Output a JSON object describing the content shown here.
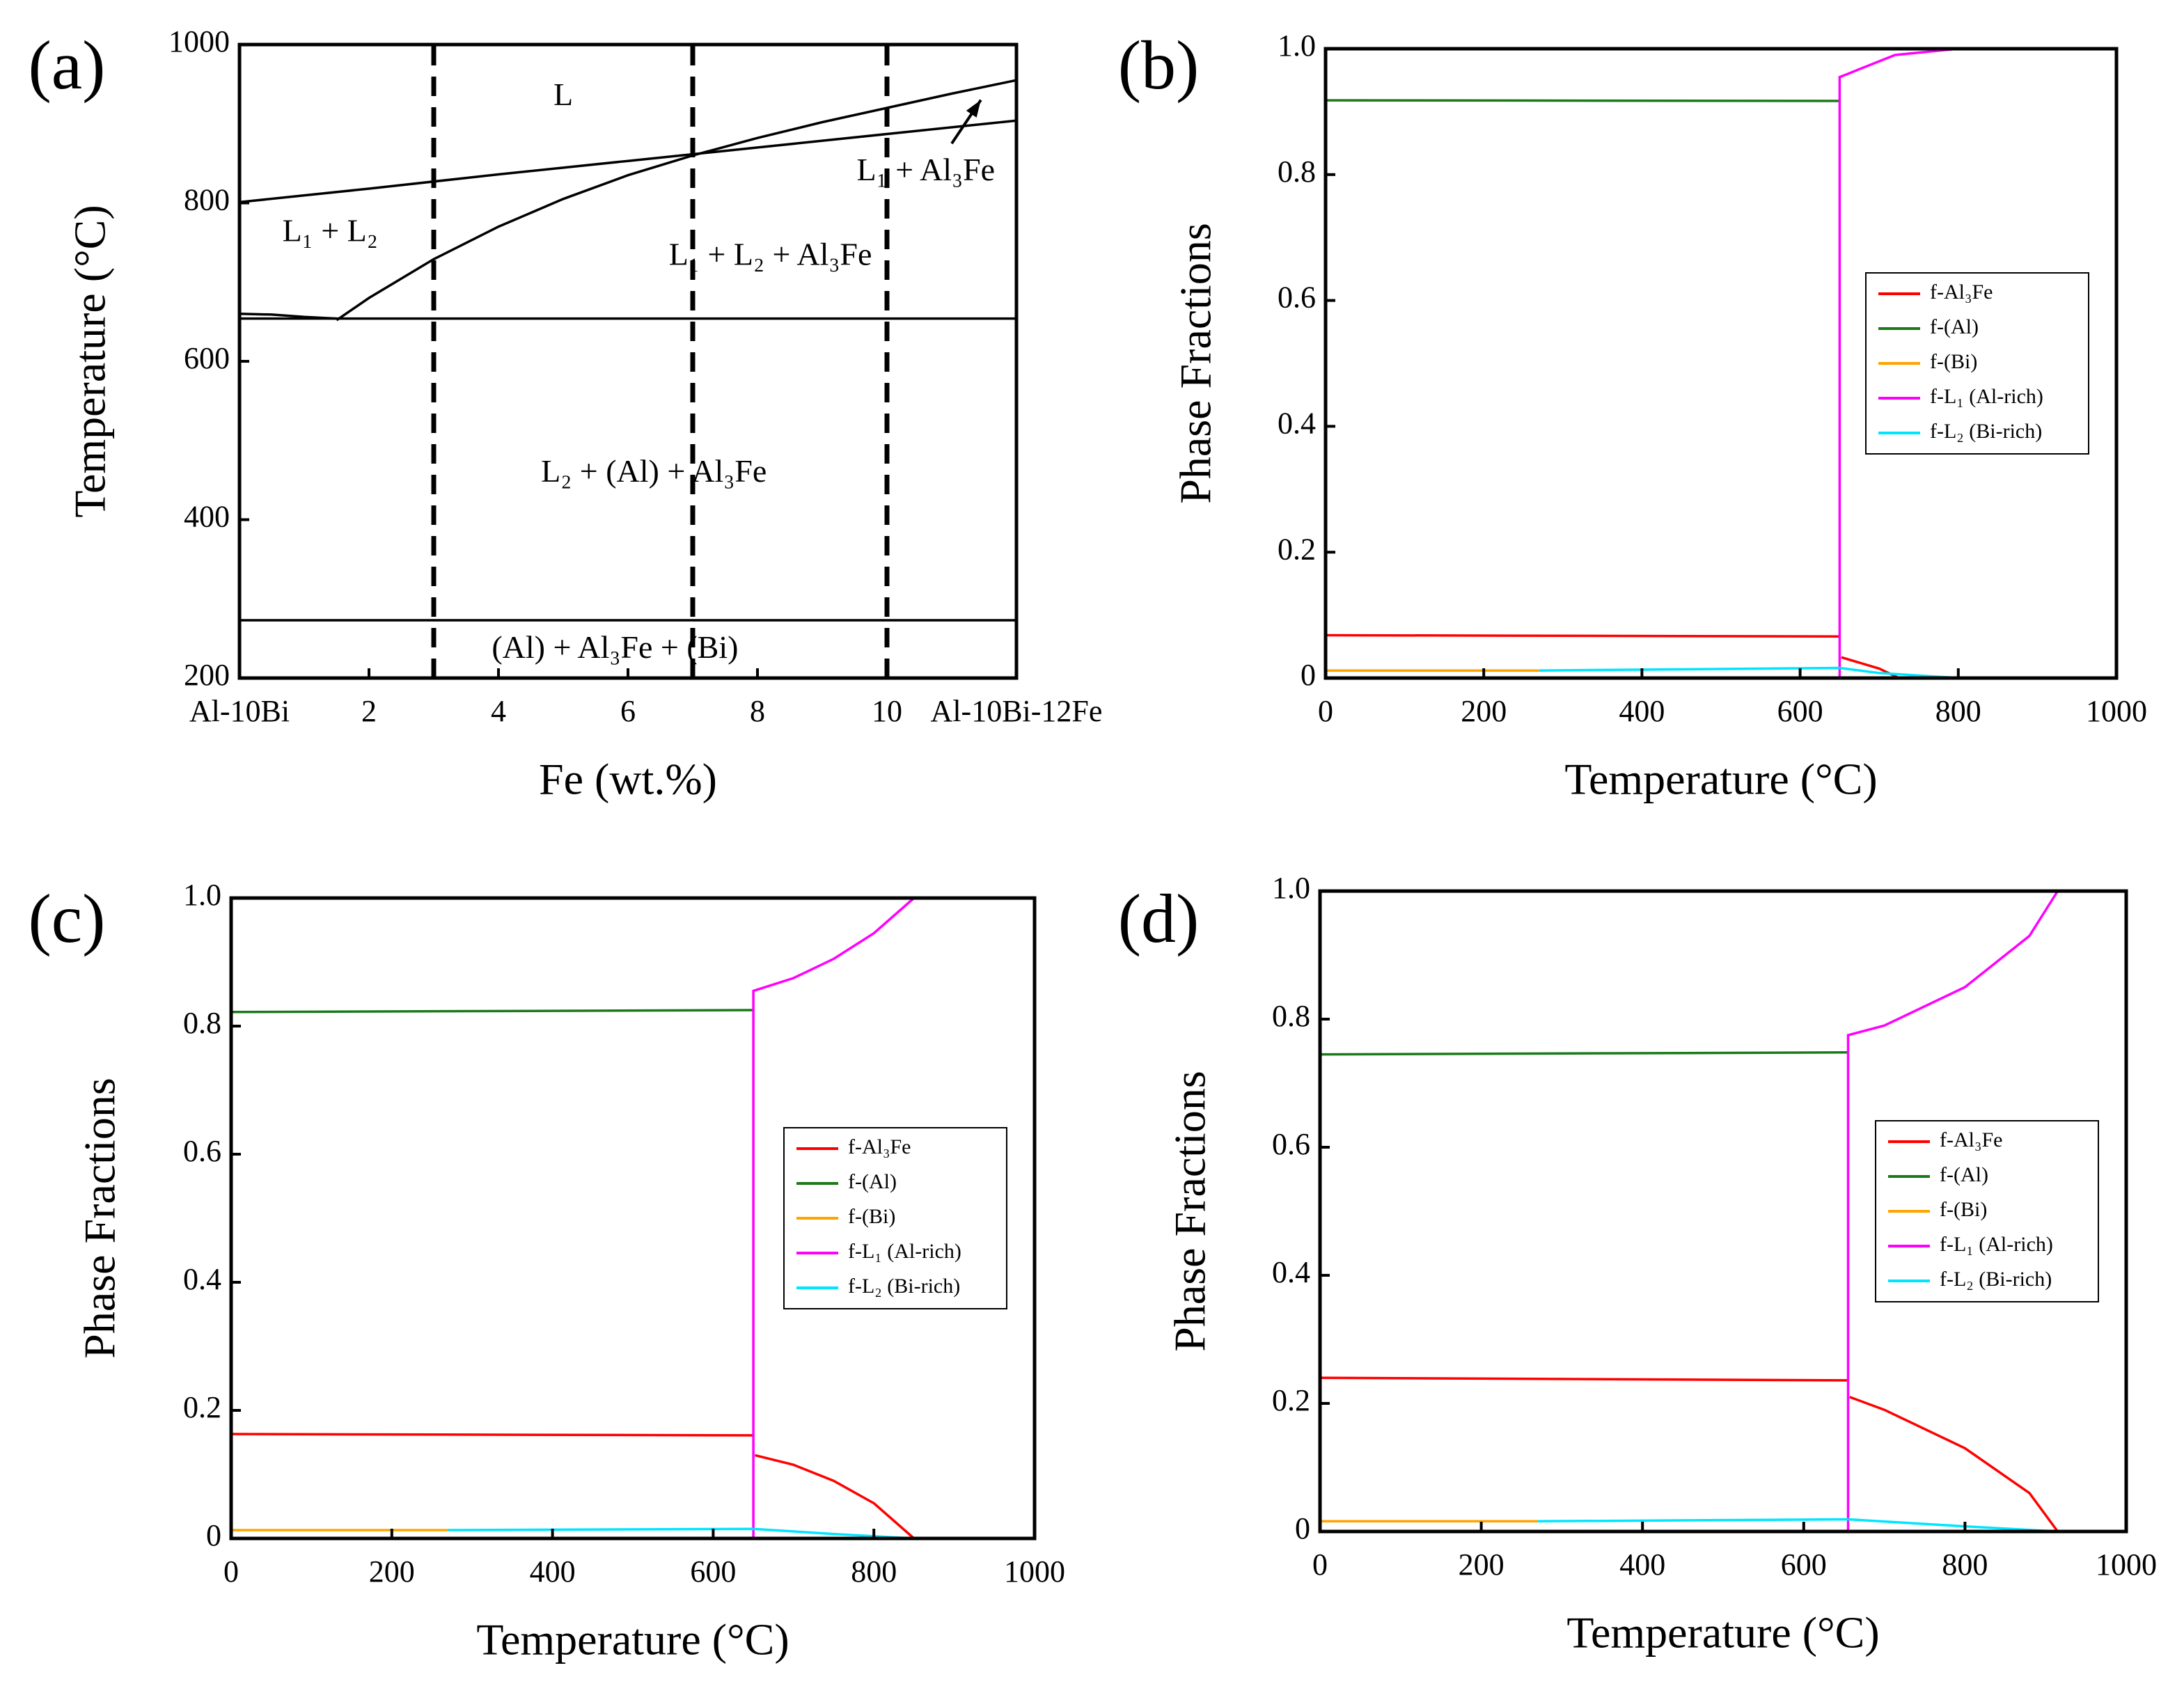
{
  "chart_data": [
    {
      "type": "line",
      "label": "(a)",
      "x_label": "Fe (wt.%)",
      "y_label": "Temperature (°C)",
      "xlim": [
        0,
        12
      ],
      "xticks": [
        {
          "value": 0,
          "label": "Al-10Bi"
        },
        2,
        4,
        6,
        8,
        10,
        {
          "value": 12,
          "label": "Al-10Bi-12Fe"
        }
      ],
      "ylim": [
        200,
        1000
      ],
      "yticks": [
        200,
        400,
        600,
        800,
        1000
      ],
      "annotations": [
        "L",
        "L₁ + L₂",
        "L₁ + L₂ + Al₃Fe",
        "L₁ + Al₃Fe",
        "L₂ + (Al) + Al₃Fe",
        "(Al) + Al₃Fe + (Bi)"
      ],
      "series": [
        {
          "color": "#000000",
          "x": [
            0,
            2,
            4,
            6,
            8,
            10,
            12
          ],
          "values": [
            801,
            818,
            836,
            853,
            870,
            887,
            904
          ]
        },
        {
          "color": "#000000",
          "x": [
            1.5,
            2,
            3,
            4,
            5,
            6,
            7,
            8,
            9,
            10,
            11,
            12
          ],
          "values": [
            652,
            680,
            729,
            770,
            805,
            835,
            860,
            882,
            902,
            920,
            938,
            955
          ]
        },
        {
          "color": "#000000",
          "x": [
            0,
            0.5,
            1,
            1.5
          ],
          "values": [
            660,
            659,
            656,
            654
          ]
        },
        {
          "color": "#000000",
          "x": [
            0,
            12
          ],
          "values": [
            654,
            654
          ]
        },
        {
          "color": "#000000",
          "x": [
            0,
            12
          ],
          "values": [
            273,
            273
          ]
        },
        {
          "color": "#000000",
          "dashed": true,
          "x": [
            3,
            3
          ],
          "values": [
            200,
            1000
          ]
        },
        {
          "color": "#000000",
          "dashed": true,
          "x": [
            7,
            7
          ],
          "values": [
            200,
            1000
          ]
        },
        {
          "color": "#000000",
          "dashed": true,
          "x": [
            10,
            10
          ],
          "values": [
            200,
            1000
          ]
        }
      ]
    },
    {
      "type": "line",
      "label": "(b)",
      "x_label": "Temperature (°C)",
      "y_label": "Phase Fractions",
      "xlim": [
        0,
        1000
      ],
      "xticks": [
        0,
        200,
        400,
        600,
        800,
        1000
      ],
      "ylim": [
        0,
        1
      ],
      "yticks": [
        0,
        0.2,
        0.4,
        0.6,
        0.8,
        {
          "value": 1,
          "label": "1.0"
        }
      ],
      "legend": "center right",
      "series": [
        {
          "name": "f-Al₃Fe",
          "color": "#ff0000",
          "x": [
            0,
            650,
            650,
            652,
            700,
            725
          ],
          "values": [
            0.068,
            0.066,
            null,
            0.033,
            0.015,
            0
          ]
        },
        {
          "name": "f-(Al)",
          "color": "#1a7a1a",
          "x": [
            0,
            650
          ],
          "values": [
            0.918,
            0.917
          ]
        },
        {
          "name": "f-(Bi)",
          "color": "#ffa500",
          "x": [
            0,
            270
          ],
          "values": [
            0.012,
            0.012
          ]
        },
        {
          "name": "f-L₁ (Al-rich)",
          "color": "#ff00ff",
          "x": [
            650,
            650,
            660,
            720,
            800
          ],
          "values": [
            0,
            0.955,
            0.96,
            0.99,
            1
          ]
        },
        {
          "name": "f-L₂ (Bi-rich)",
          "color": "#00e5ff",
          "x": [
            270,
            650,
            700,
            800
          ],
          "values": [
            0.012,
            0.016,
            0.008,
            0
          ]
        }
      ]
    },
    {
      "type": "line",
      "label": "(c)",
      "x_label": "Temperature (°C)",
      "y_label": "Phase Fractions",
      "xlim": [
        0,
        1000
      ],
      "xticks": [
        0,
        200,
        400,
        600,
        800,
        1000
      ],
      "ylim": [
        0,
        1
      ],
      "yticks": [
        0,
        0.2,
        0.4,
        0.6,
        0.8,
        {
          "value": 1,
          "label": "1.0"
        }
      ],
      "legend": "center right",
      "series": [
        {
          "name": "f-Al₃Fe",
          "color": "#ff0000",
          "x": [
            0,
            650,
            650,
            652,
            700,
            750,
            800,
            850
          ],
          "values": [
            0.163,
            0.161,
            null,
            0.13,
            0.115,
            0.09,
            0.055,
            0
          ]
        },
        {
          "name": "f-(Al)",
          "color": "#1a7a1a",
          "x": [
            0,
            650
          ],
          "values": [
            0.822,
            0.825
          ]
        },
        {
          "name": "f-(Bi)",
          "color": "#ffa500",
          "x": [
            0,
            270
          ],
          "values": [
            0.013,
            0.013
          ]
        },
        {
          "name": "f-L₁ (Al-rich)",
          "color": "#ff00ff",
          "x": [
            650,
            650,
            700,
            750,
            800,
            850
          ],
          "values": [
            0,
            0.855,
            0.875,
            0.905,
            0.945,
            1
          ]
        },
        {
          "name": "f-L₂ (Bi-rich)",
          "color": "#00e5ff",
          "x": [
            270,
            650,
            750,
            850
          ],
          "values": [
            0.013,
            0.015,
            0.007,
            0
          ]
        }
      ]
    },
    {
      "type": "line",
      "label": "(d)",
      "x_label": "Temperature (°C)",
      "y_label": "Phase Fractions",
      "xlim": [
        0,
        1000
      ],
      "xticks": [
        0,
        200,
        400,
        600,
        800,
        1000
      ],
      "ylim": [
        0,
        1
      ],
      "yticks": [
        0,
        0.2,
        0.4,
        0.6,
        0.8,
        {
          "value": 1,
          "label": "1.0"
        }
      ],
      "legend": "center right",
      "series": [
        {
          "name": "f-Al₃Fe",
          "color": "#ff0000",
          "x": [
            0,
            655,
            655,
            657,
            700,
            800,
            880,
            915
          ],
          "values": [
            0.24,
            0.236,
            null,
            0.21,
            0.19,
            0.13,
            0.06,
            0
          ]
        },
        {
          "name": "f-(Al)",
          "color": "#1a7a1a",
          "x": [
            0,
            655
          ],
          "values": [
            0.745,
            0.748
          ]
        },
        {
          "name": "f-(Bi)",
          "color": "#ffa500",
          "x": [
            0,
            270
          ],
          "values": [
            0.016,
            0.016
          ]
        },
        {
          "name": "f-L₁ (Al-rich)",
          "color": "#ff00ff",
          "x": [
            655,
            655,
            700,
            800,
            880,
            915
          ],
          "values": [
            0,
            0.775,
            0.79,
            0.85,
            0.93,
            1
          ]
        },
        {
          "name": "f-L₂ (Bi-rich)",
          "color": "#00e5ff",
          "x": [
            270,
            655,
            800,
            915
          ],
          "values": [
            0.016,
            0.019,
            0.008,
            0
          ]
        }
      ]
    }
  ]
}
